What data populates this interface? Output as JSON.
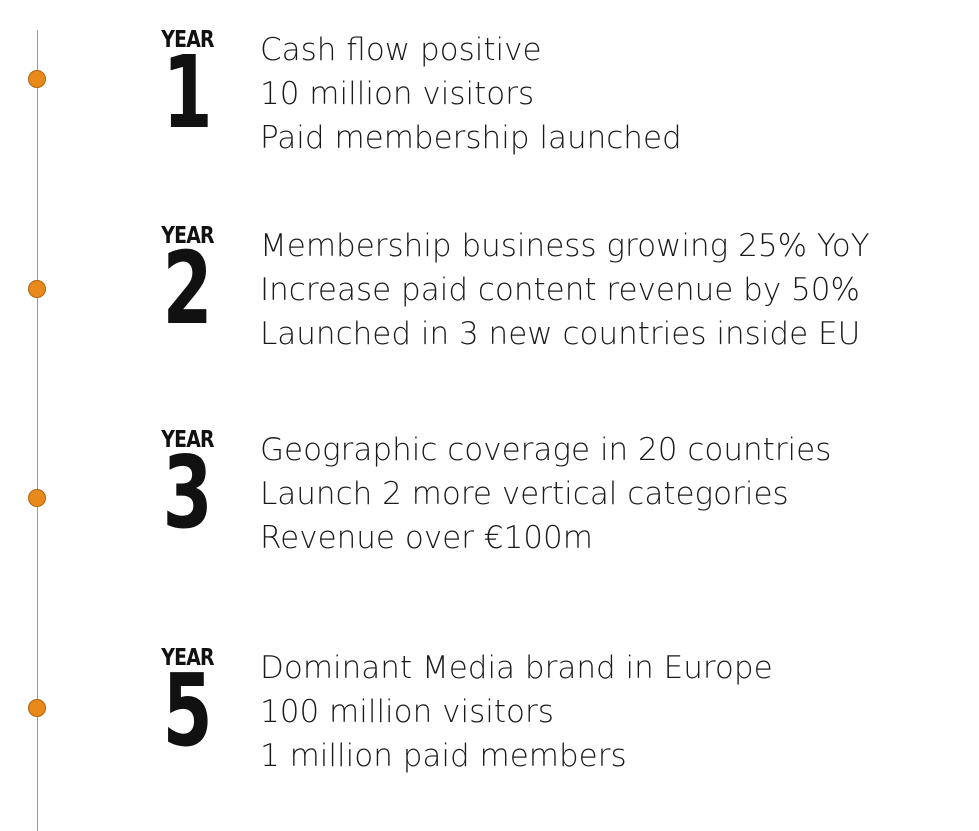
{
  "colors": {
    "accent": "#e8891c",
    "line": "#9a9a9a",
    "text": "#1a1a1a"
  },
  "milestones": [
    {
      "year_label": "YEAR",
      "year_number": "1",
      "items": [
        "Cash flow positive",
        "10 million visitors",
        "Paid membership launched"
      ]
    },
    {
      "year_label": "YEAR",
      "year_number": "2",
      "items": [
        "Membership business growing 25% YoY",
        "Increase paid content revenue by 50%",
        "Launched in 3 new countries inside EU"
      ]
    },
    {
      "year_label": "YEAR",
      "year_number": "3",
      "items": [
        "Geographic coverage in 20 countries",
        "Launch 2 more vertical categories",
        "Revenue over €100m"
      ]
    },
    {
      "year_label": "YEAR",
      "year_number": "5",
      "items": [
        "Dominant Media brand in Europe",
        "100 million visitors",
        "1 million paid members"
      ]
    }
  ]
}
